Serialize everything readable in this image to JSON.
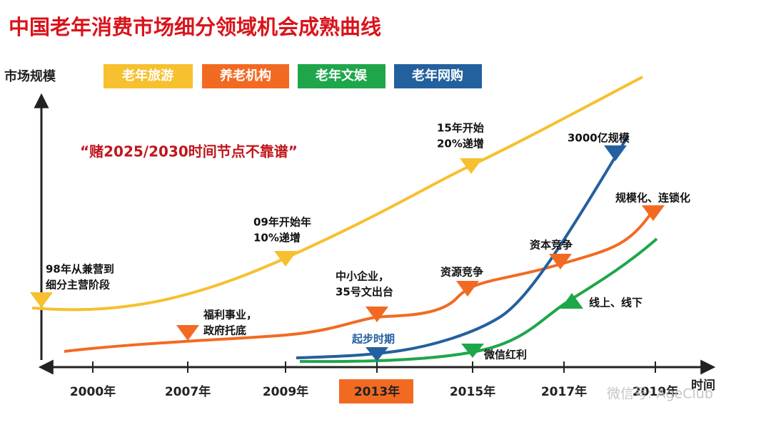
{
  "title": "中国老年消费市场细分领域机会成熟曲线",
  "y_axis_label": "市场规模",
  "x_axis_label": "时间",
  "legend": [
    "老年旅游",
    "养老机构",
    "老年文娱",
    "老年网购"
  ],
  "note": "“赌2025/2030时间节点不靠谱”",
  "x_ticks": [
    "2000年",
    "2007年",
    "2009年",
    "2013年",
    "2015年",
    "2017年",
    "2019年"
  ],
  "annotations": {
    "tourism": [
      [
        "98年从兼营到",
        "细分主营阶段"
      ],
      [
        "09年开始年",
        "10%递增"
      ],
      [
        "15年开始",
        "20%递增"
      ]
    ],
    "elderly_care": [
      [
        "福利事业，",
        "政府托底"
      ],
      [
        "中小企业，",
        "35号文出台"
      ],
      [
        "资源竞争"
      ],
      [
        "资本竞争"
      ],
      [
        "规模化、连锁化"
      ]
    ],
    "online_shopping": [
      [
        "起步时期"
      ],
      [
        "3000亿规模"
      ]
    ],
    "entertainment": [
      [
        "微信红利"
      ],
      [
        "线上、线下"
      ]
    ]
  },
  "watermark": "微信号: AgeClub"
}
